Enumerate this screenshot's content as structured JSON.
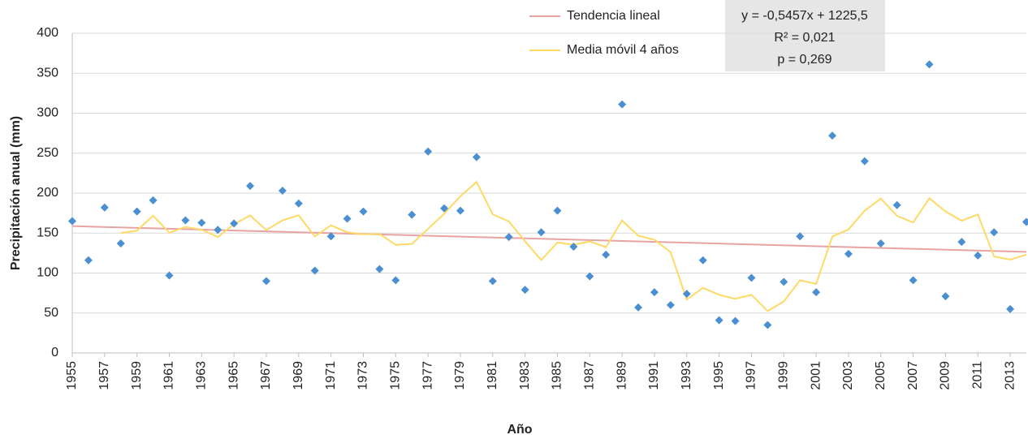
{
  "chart_data": {
    "type": "scatter",
    "x_label": "Año",
    "y_label": "Precipitación anual (mm)",
    "x": [
      1955,
      1956,
      1957,
      1958,
      1959,
      1960,
      1961,
      1962,
      1963,
      1964,
      1965,
      1966,
      1967,
      1968,
      1969,
      1970,
      1971,
      1972,
      1973,
      1974,
      1975,
      1976,
      1977,
      1978,
      1979,
      1980,
      1981,
      1982,
      1983,
      1984,
      1985,
      1986,
      1987,
      1988,
      1989,
      1990,
      1991,
      1992,
      1993,
      1994,
      1995,
      1996,
      1997,
      1998,
      1999,
      2000,
      2001,
      2002,
      2003,
      2004,
      2005,
      2006,
      2007,
      2008,
      2009,
      2010,
      2011,
      2012,
      2013,
      2014
    ],
    "values": [
      165,
      116,
      182,
      137,
      177,
      191,
      97,
      166,
      163,
      154,
      162,
      209,
      90,
      203,
      187,
      103,
      146,
      168,
      177,
      105,
      91,
      173,
      252,
      181,
      178,
      245,
      90,
      145,
      79,
      151,
      178,
      133,
      96,
      123,
      311,
      57,
      76,
      60,
      74,
      116,
      41,
      40,
      94,
      35,
      89,
      146,
      76,
      272,
      124,
      240,
      137,
      185,
      91,
      361,
      71,
      139,
      122,
      151,
      55,
      164
    ],
    "color": "#4a8fd1",
    "series": [
      {
        "name": "Tendencia lineal",
        "color": "#e8a3a3",
        "x": [
          1955,
          2014
        ],
        "values": [
          158.7,
          126.5
        ]
      },
      {
        "name": "Media móvil 4 años",
        "color": "#ffd966",
        "values": [
          null,
          null,
          null,
          150,
          153,
          171.75,
          150.5,
          157.75,
          154.25,
          145,
          161.25,
          172,
          153.75,
          166,
          172.25,
          145.75,
          159.75,
          151,
          148.5,
          149,
          135.25,
          136.5,
          155.25,
          174.25,
          196,
          214,
          173.5,
          164.5,
          139.75,
          116.25,
          138.25,
          135.25,
          139.5,
          132.5,
          165.75,
          146.75,
          141.75,
          126,
          66.75,
          81.5,
          72.75,
          67.75,
          72.75,
          52.5,
          64.5,
          91,
          86.5,
          145.75,
          154.5,
          178,
          193.25,
          171.5,
          163.25,
          193.5,
          177,
          165.5,
          173.25,
          120.75,
          116.75,
          123
        ]
      }
    ],
    "annotations": [
      "y = -0,5457x + 1225,5",
      "R² = 0,021",
      "p = 0,269"
    ],
    "xlim": [
      1955,
      2014
    ],
    "xticks": [
      1955,
      1957,
      1959,
      1961,
      1963,
      1965,
      1967,
      1969,
      1971,
      1973,
      1975,
      1977,
      1979,
      1981,
      1983,
      1985,
      1987,
      1989,
      1991,
      1993,
      1995,
      1997,
      1999,
      2001,
      2003,
      2005,
      2007,
      2009,
      2011,
      2013
    ],
    "ylim": [
      0,
      400
    ],
    "yticks": [
      0,
      50,
      100,
      150,
      200,
      250,
      300,
      350,
      400
    ],
    "grid": true
  }
}
